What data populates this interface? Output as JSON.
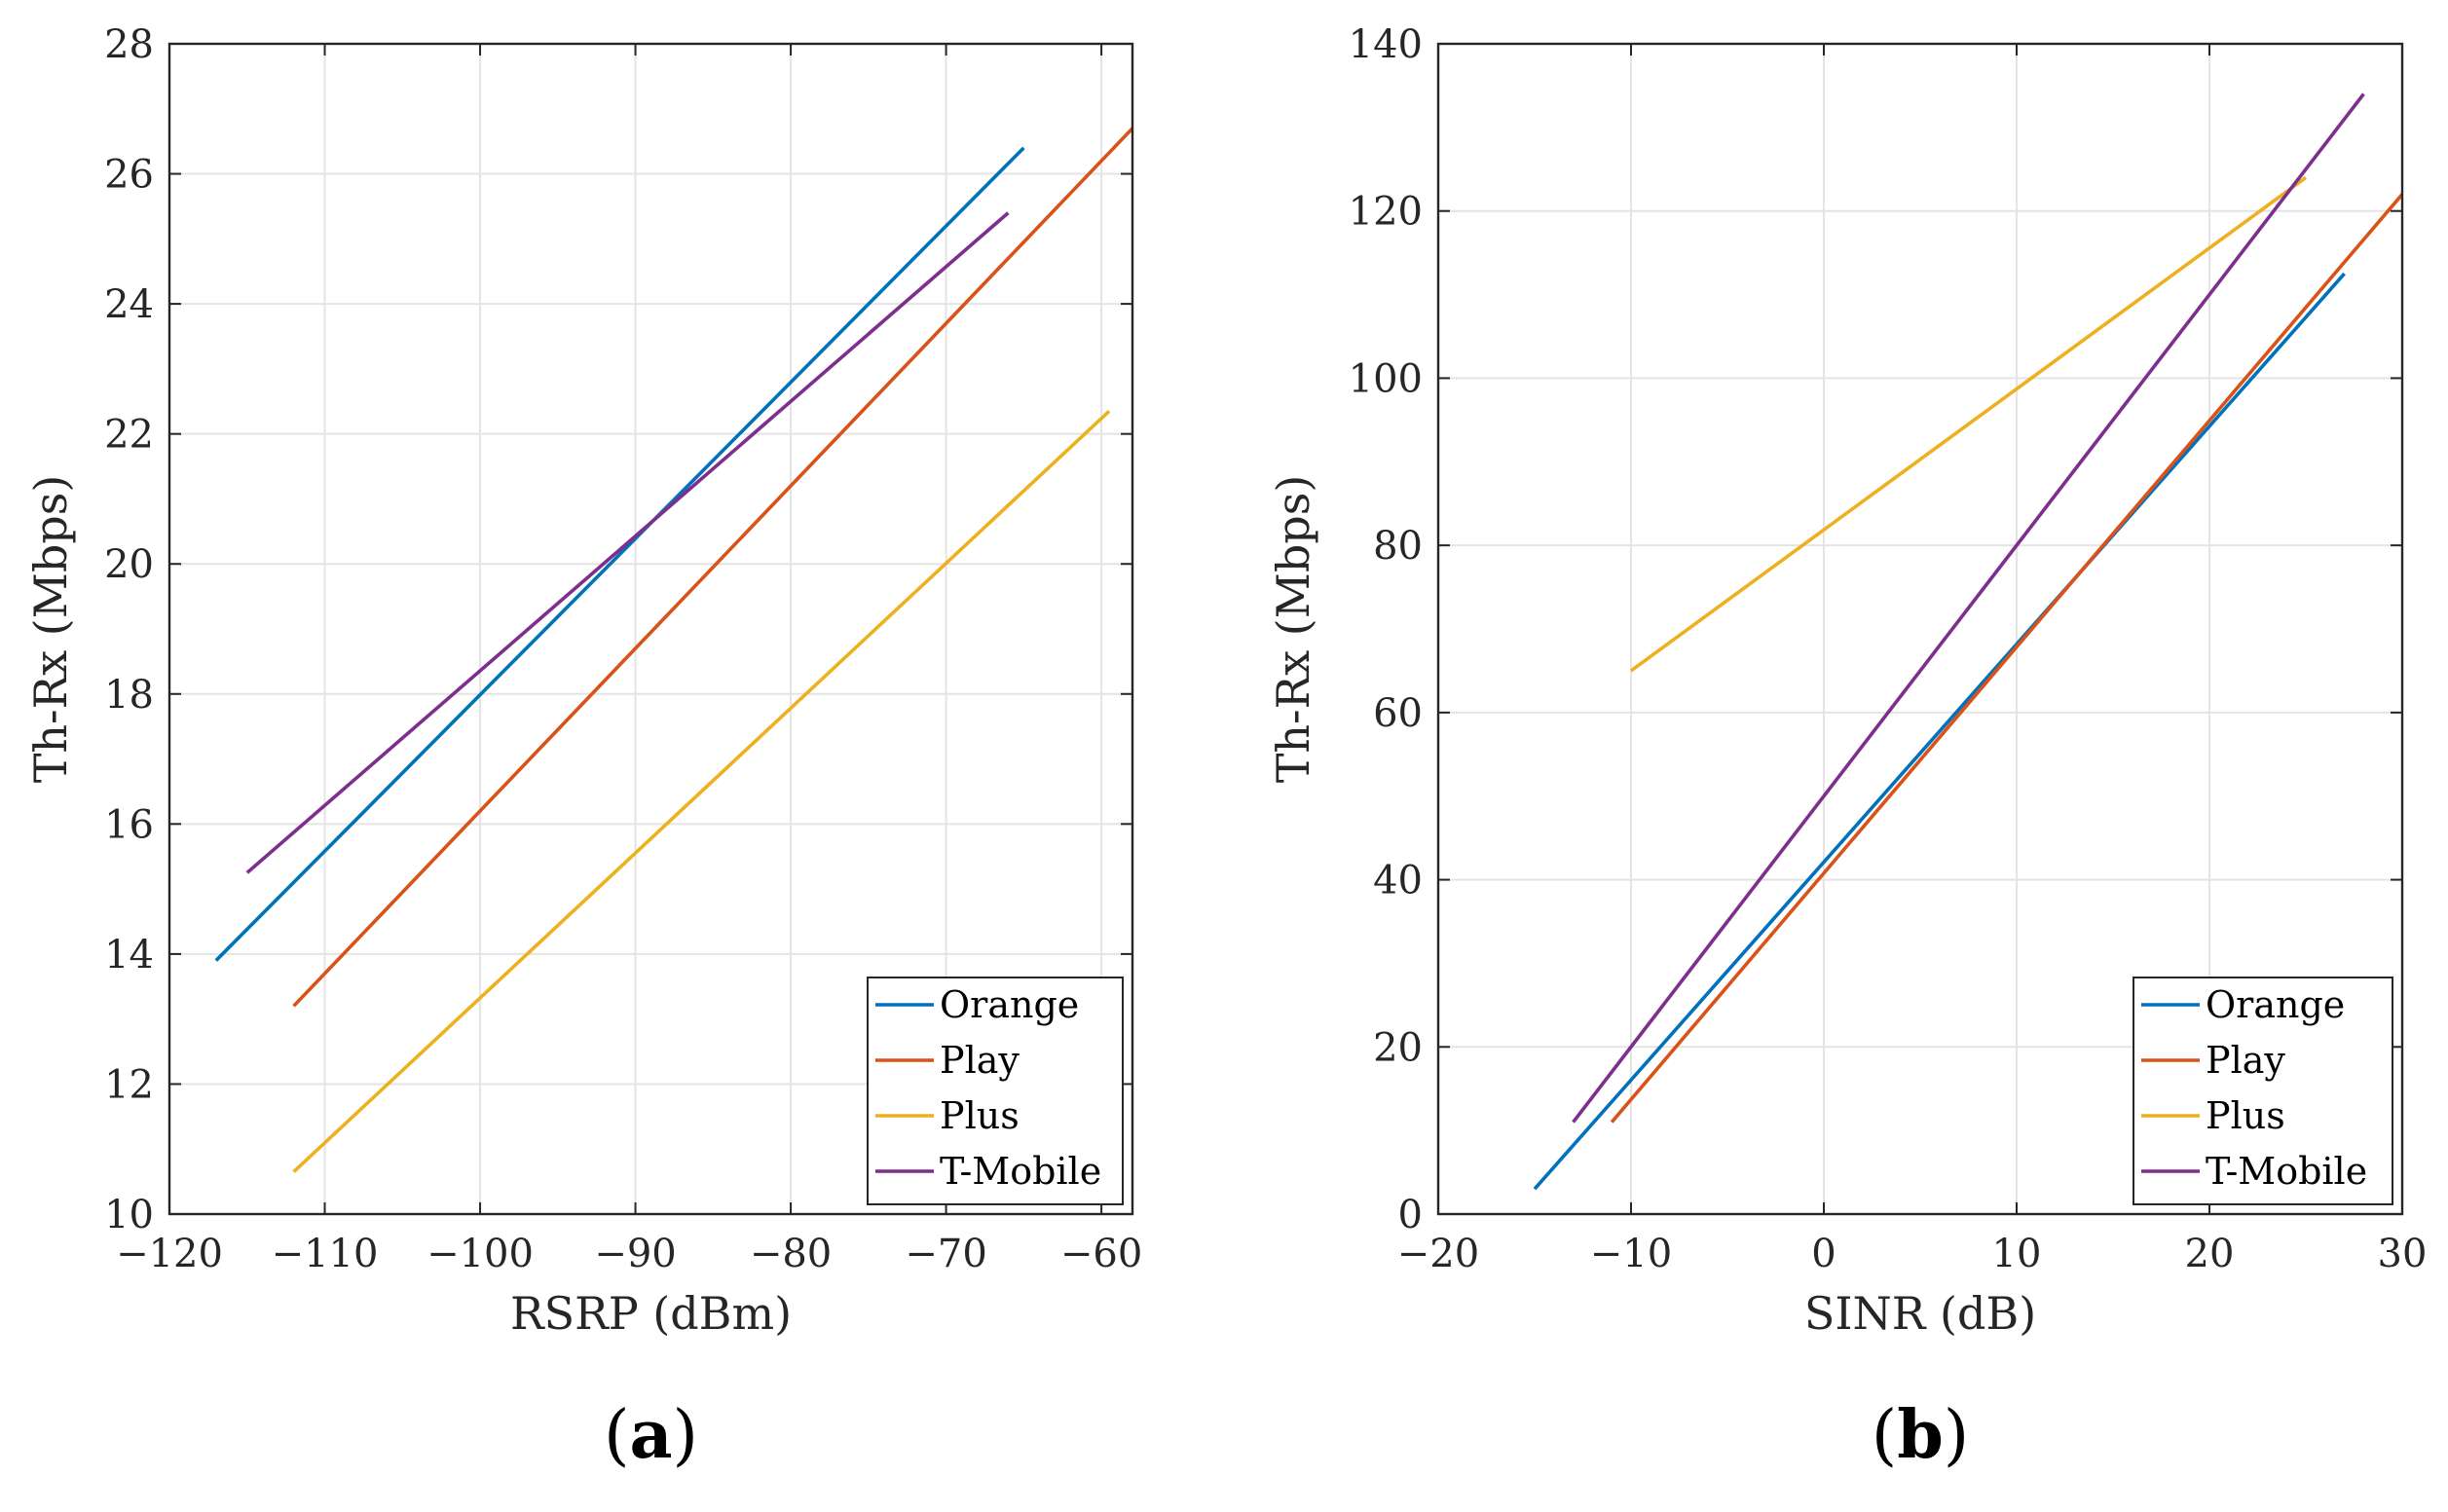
{
  "chart_data": [
    {
      "type": "line",
      "panel_label": "a",
      "title": "",
      "xlabel": "RSRP  (dBm)",
      "ylabel": "Th-Rx  (Mbps)",
      "xlim": [
        -120,
        -58
      ],
      "ylim": [
        10,
        28
      ],
      "xticks": [
        -120,
        -110,
        -100,
        -90,
        -80,
        -70,
        -60
      ],
      "yticks": [
        10,
        12,
        14,
        16,
        18,
        20,
        22,
        24,
        26,
        28
      ],
      "xtick_labels": [
        "−120",
        "−110",
        "−100",
        "−90",
        "−80",
        "−70",
        "−60"
      ],
      "ytick_labels": [
        "10",
        "12",
        "14",
        "16",
        "18",
        "20",
        "22",
        "24",
        "26",
        "28"
      ],
      "grid": true,
      "legend_position": "bottom-right",
      "series": [
        {
          "name": "Orange",
          "color": "#0072BD",
          "x": [
            -117,
            -65
          ],
          "y": [
            13.9,
            26.4
          ]
        },
        {
          "name": "Play",
          "color": "#D95319",
          "x": [
            -112,
            -58
          ],
          "y": [
            13.2,
            26.7
          ]
        },
        {
          "name": "Plus",
          "color": "#EDB120",
          "x": [
            -112,
            -59.5
          ],
          "y": [
            10.65,
            22.35
          ]
        },
        {
          "name": "T-Mobile",
          "color": "#7E2F8E",
          "x": [
            -115,
            -66
          ],
          "y": [
            15.25,
            25.4
          ]
        }
      ]
    },
    {
      "type": "line",
      "panel_label": "b",
      "title": "",
      "xlabel": "SINR  (dB)",
      "ylabel": "Th-Rx  (Mbps)",
      "xlim": [
        -20,
        30
      ],
      "ylim": [
        0,
        140
      ],
      "xticks": [
        -20,
        -10,
        0,
        10,
        20,
        30
      ],
      "yticks": [
        0,
        20,
        40,
        60,
        80,
        100,
        120,
        140
      ],
      "xtick_labels": [
        "−20",
        "−10",
        "0",
        "10",
        "20",
        "30"
      ],
      "ytick_labels": [
        "0",
        "20",
        "40",
        "60",
        "80",
        "100",
        "120",
        "140"
      ],
      "grid": true,
      "legend_position": "bottom-right",
      "series": [
        {
          "name": "Orange",
          "color": "#0072BD",
          "x": [
            -15,
            27
          ],
          "y": [
            3,
            112.5
          ]
        },
        {
          "name": "Play",
          "color": "#D95319",
          "x": [
            -11,
            30
          ],
          "y": [
            11,
            122
          ]
        },
        {
          "name": "Plus",
          "color": "#EDB120",
          "x": [
            -10,
            25
          ],
          "y": [
            65,
            124
          ]
        },
        {
          "name": "T-Mobile",
          "color": "#7E2F8E",
          "x": [
            -13,
            28
          ],
          "y": [
            11,
            134
          ]
        }
      ]
    }
  ]
}
